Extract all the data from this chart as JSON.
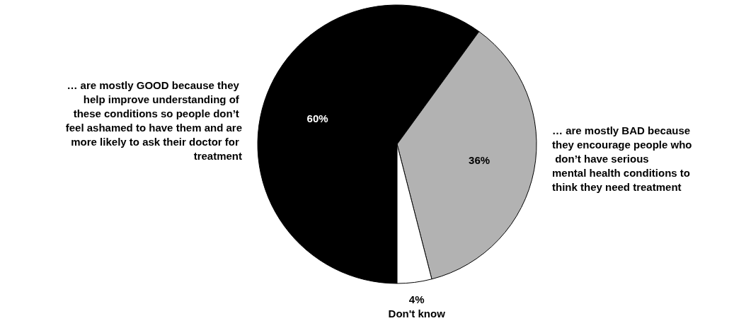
{
  "chart_data": {
    "type": "pie",
    "categories": [
      "… are mostly GOOD because they help improve understanding of these conditions so people don’t feel ashamed to have them and are more likely to ask their doctor for treatment",
      "… are mostly BAD because they encourage people who don’t have serious mental health conditions to think they need treatment",
      "Don't know"
    ],
    "values": [
      60,
      36,
      4
    ],
    "colors": [
      "#000000",
      "#b2b2b2",
      "#ffffff"
    ],
    "value_labels": [
      "60%",
      "36%",
      "4%"
    ],
    "legend": false
  }
}
